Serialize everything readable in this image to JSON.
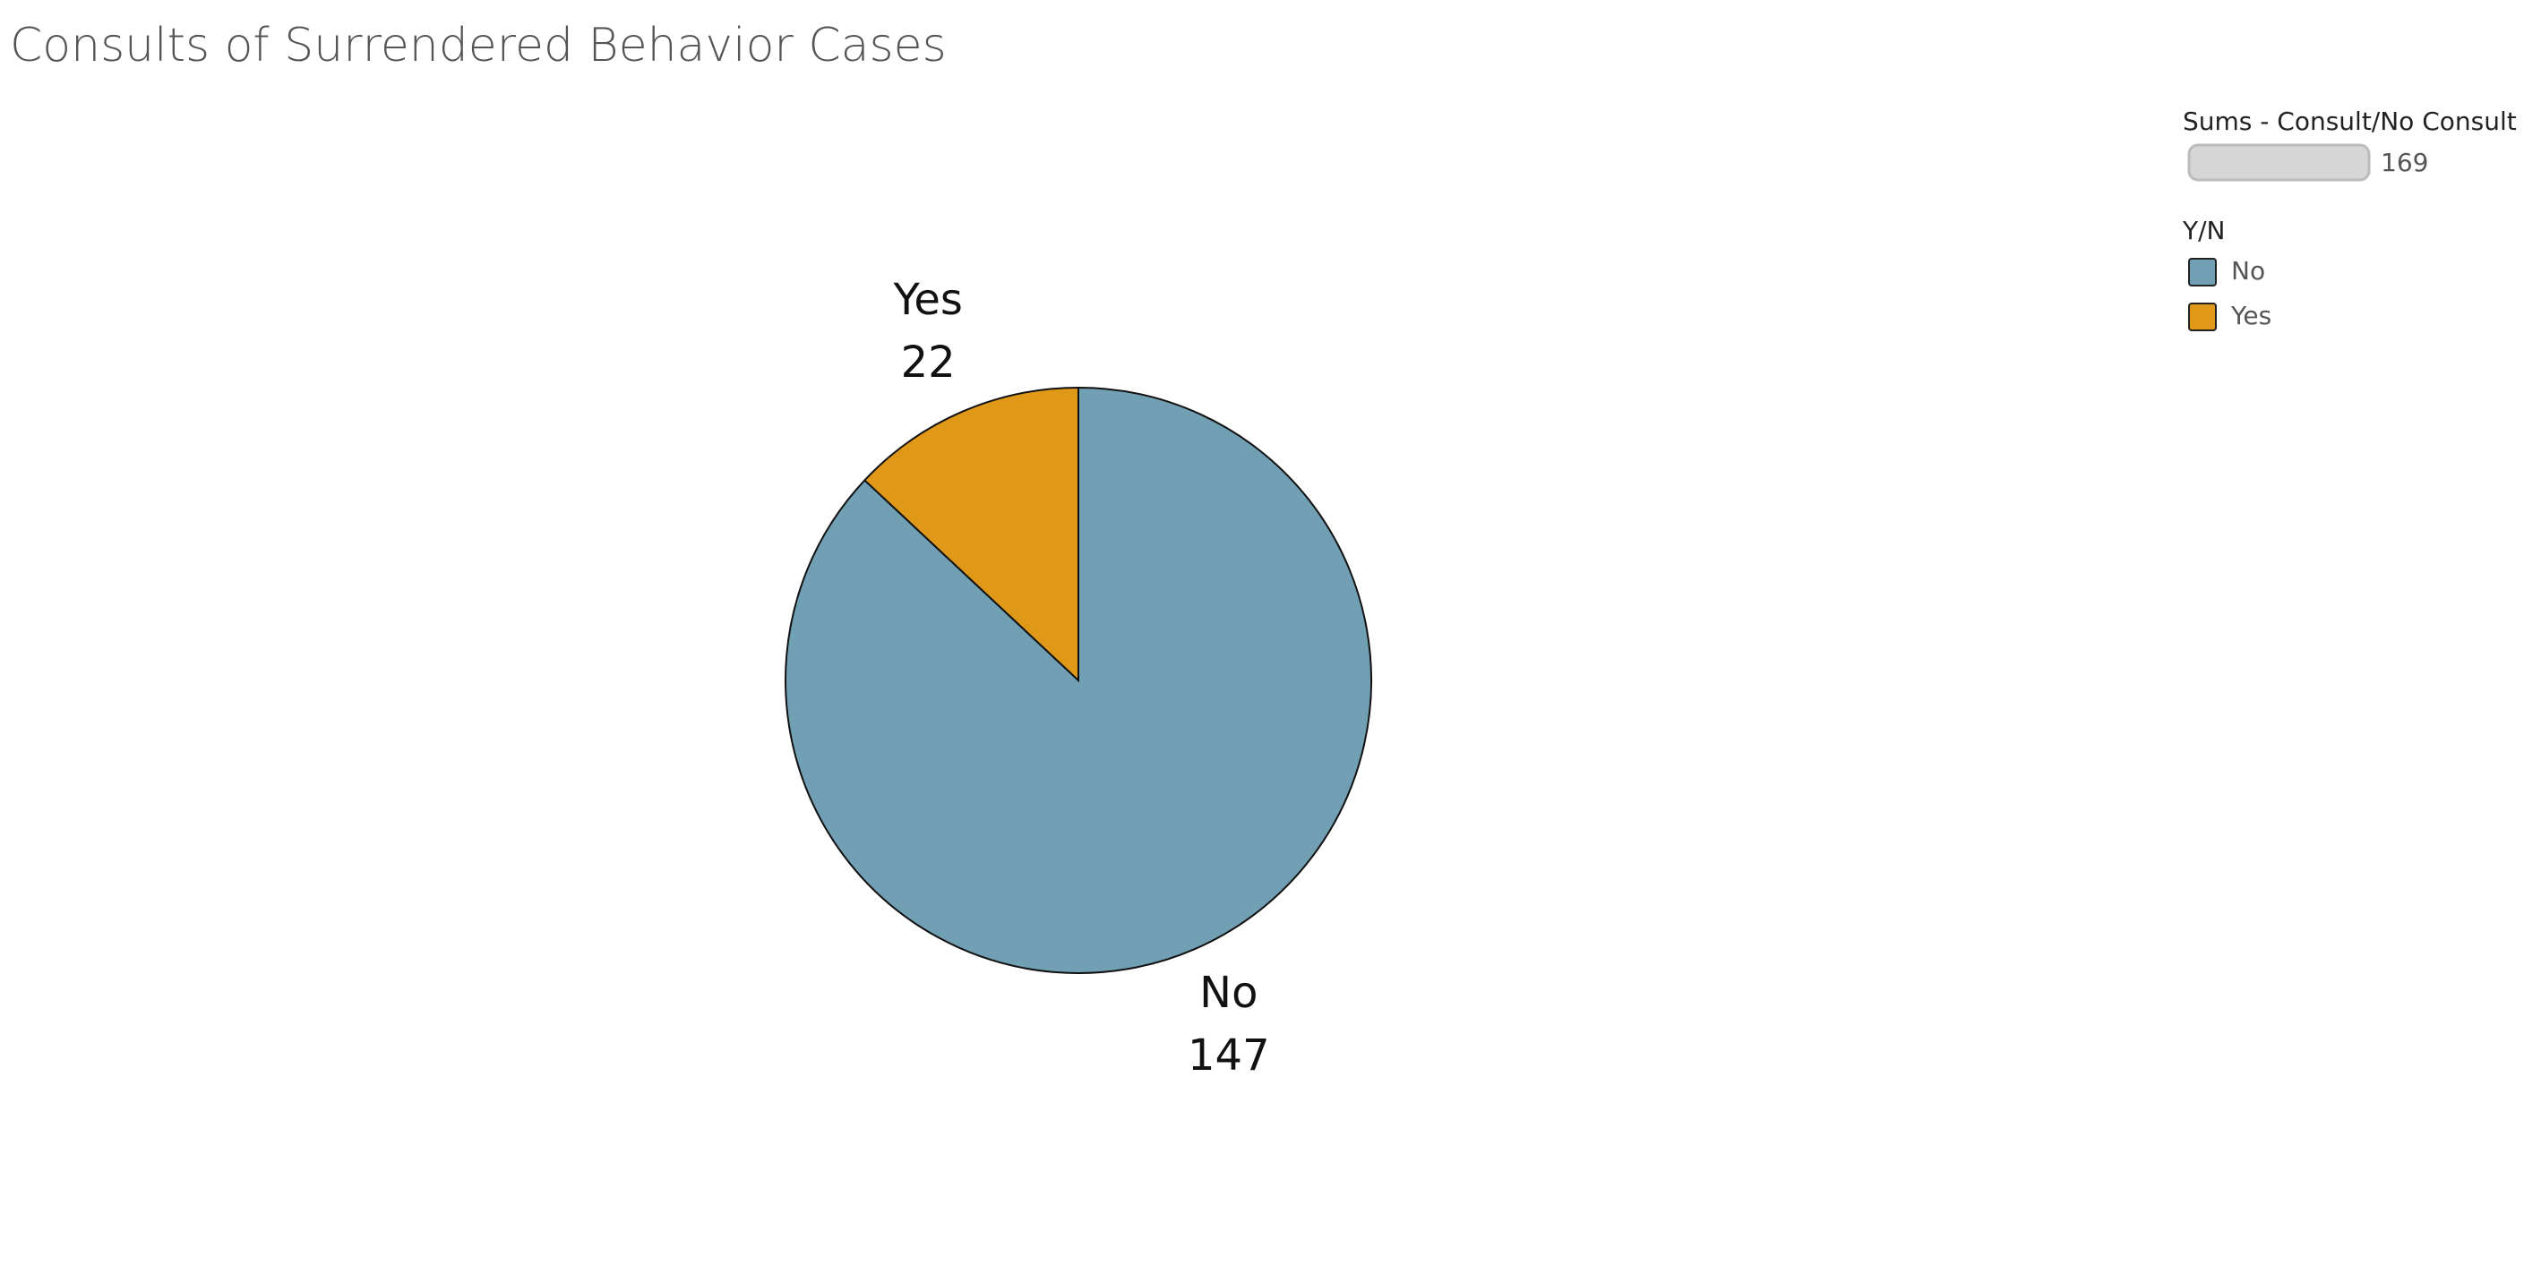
{
  "chart_data": {
    "type": "pie",
    "title": "Consults of Surrendered Behavior Cases",
    "categories": [
      "No",
      "Yes"
    ],
    "values": [
      147,
      22
    ],
    "colors": [
      "#71a0b5",
      "#e09819"
    ],
    "legend_title": "Y/N",
    "size_legend_title": "Sums - Consult/No Consult",
    "size_legend_max": 169
  }
}
